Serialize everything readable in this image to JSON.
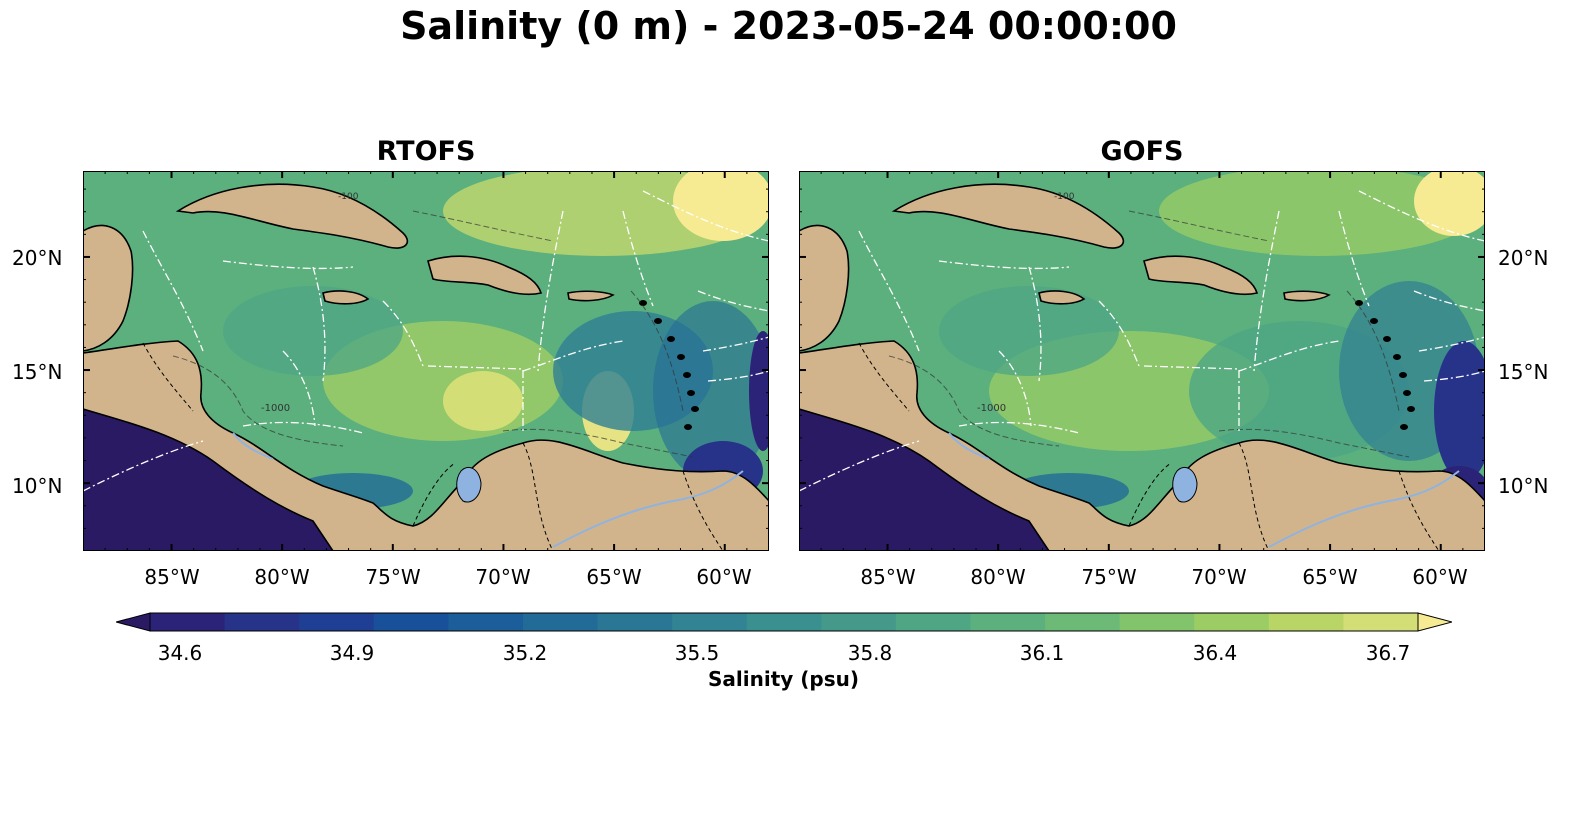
{
  "title": "Salinity (0 m) - 2023-05-24 00:00:00",
  "panels": [
    {
      "title": "RTOFS"
    },
    {
      "title": "GOFS"
    }
  ],
  "axes": {
    "lon_range": [
      -89,
      -58
    ],
    "lat_range": [
      7,
      23.8
    ],
    "lon_ticks": [
      "85°W",
      "80°W",
      "75°W",
      "70°W",
      "65°W",
      "60°W"
    ],
    "lat_ticks": [
      "20°N",
      "15°N",
      "10°N"
    ]
  },
  "contour_labels": [
    "-100",
    "-1000"
  ],
  "colorbar": {
    "label": "Salinity (psu)",
    "ticks": [
      "34.6",
      "34.9",
      "35.2",
      "35.5",
      "35.8",
      "36.1",
      "36.4",
      "36.7"
    ],
    "colormap": "haline",
    "extend": "both",
    "colors": [
      "#2a1a64",
      "#2b2377",
      "#273289",
      "#1f3f95",
      "#18509a",
      "#1b5e99",
      "#236b97",
      "#2a7795",
      "#328393",
      "#3a8f8f",
      "#44998b",
      "#4ea685",
      "#5bb07e",
      "#6cba76",
      "#82c46c",
      "#9ccd65",
      "#b8d565",
      "#d4de76",
      "#f6ea92"
    ]
  },
  "map_colors": {
    "land": "#d2b48c",
    "lake": "#8fb3e0",
    "pacific": "#2a1a64",
    "sea_mid": "#5bb07e",
    "sea_green": "#4ea685",
    "sea_yellow": "#c9db6c",
    "sea_teal": "#2f7f93"
  }
}
